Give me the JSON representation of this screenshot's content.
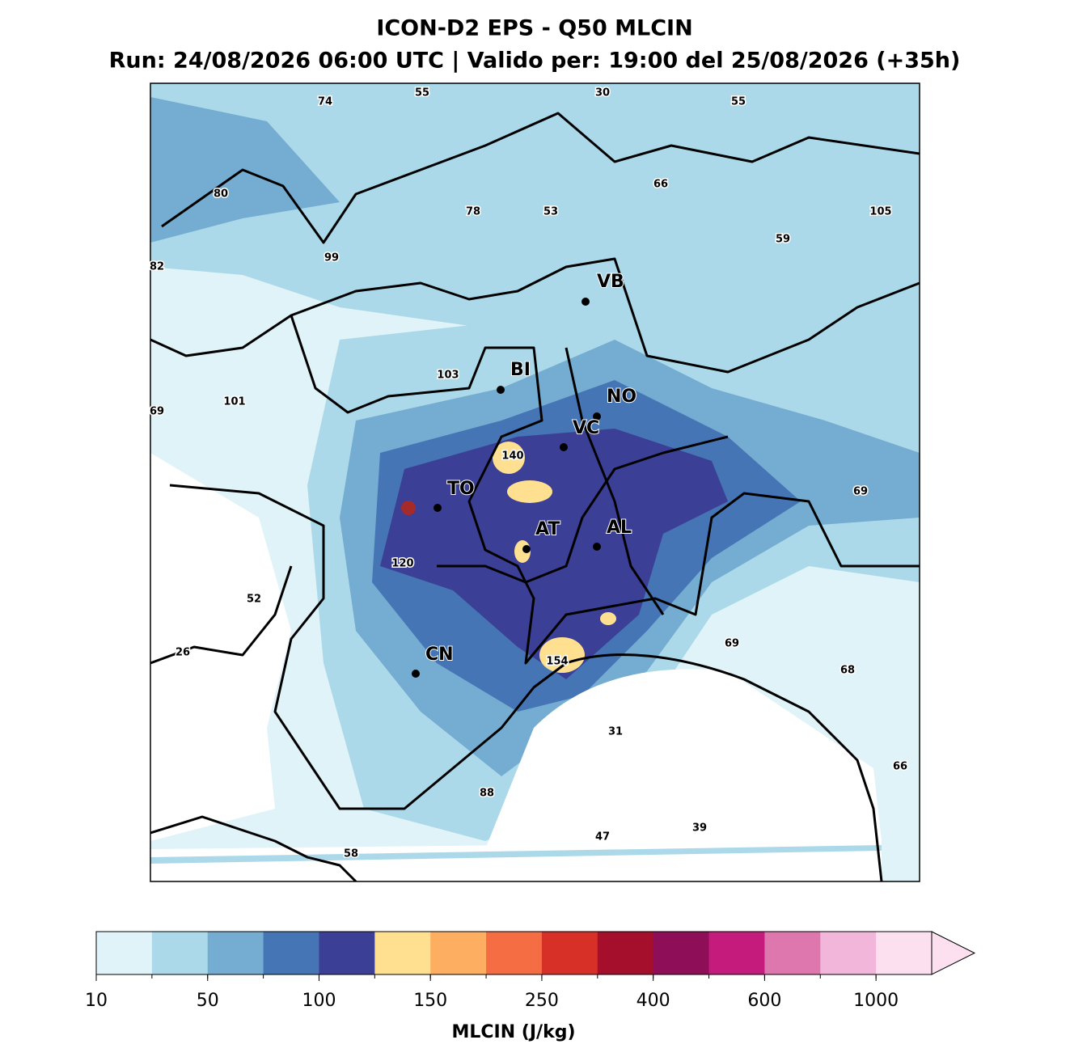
{
  "header": {
    "title": "ICON-D2 EPS - Q50 MLCIN",
    "subtitle": "Run: 24/08/2026 06:00 UTC | Valido per: 19:00 del 25/08/2026 (+35h)"
  },
  "map": {
    "value_labels": [
      74,
      55,
      30,
      55,
      80,
      66,
      78,
      53,
      105,
      82,
      99,
      59,
      103,
      101,
      69,
      140,
      69,
      120,
      52,
      26,
      154,
      69,
      68,
      31,
      66,
      88,
      47,
      39,
      58
    ],
    "cities": [
      "VB",
      "BI",
      "NO",
      "VC",
      "TO",
      "AT",
      "AL",
      "CN"
    ]
  },
  "colorbar": {
    "colors": [
      "#e0f3f8",
      "#abd9e9",
      "#74add1",
      "#4575b4",
      "#3b3f96",
      "#fee090",
      "#fdae61",
      "#f46d43",
      "#d73027",
      "#a50f2b",
      "#8e0f57",
      "#c51b7d",
      "#de77ae",
      "#f1b6da",
      "#fde0ef"
    ],
    "ticks": [
      10,
      50,
      100,
      150,
      250,
      400,
      600,
      1000
    ],
    "label": "MLCIN (J/kg)"
  }
}
